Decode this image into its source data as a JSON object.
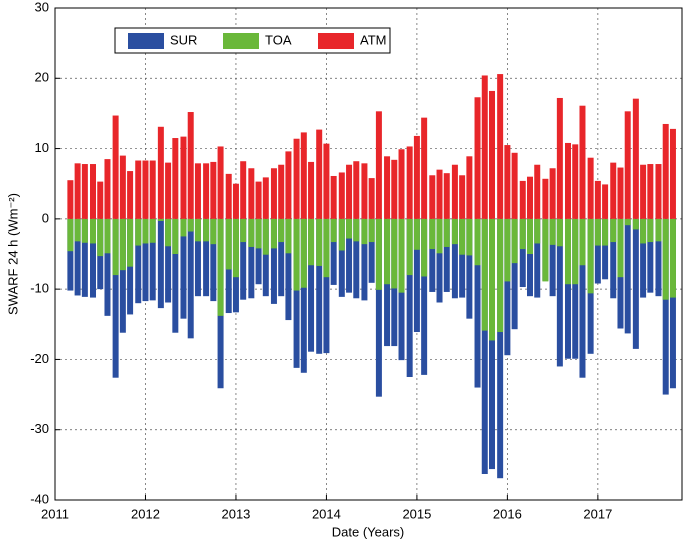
{
  "chart_data": {
    "type": "bar",
    "xlabel": "Date (Years)",
    "ylabel": "SWARF 24 h (Wm⁻²)",
    "x": [
      2011.17,
      2011.25,
      2011.33,
      2011.42,
      2011.5,
      2011.58,
      2011.67,
      2011.75,
      2011.83,
      2011.92,
      2012,
      2012.08,
      2012.17,
      2012.25,
      2012.33,
      2012.42,
      2012.5,
      2012.58,
      2012.67,
      2012.75,
      2012.83,
      2012.92,
      2013,
      2013.08,
      2013.17,
      2013.25,
      2013.33,
      2013.42,
      2013.5,
      2013.58,
      2013.67,
      2013.75,
      2013.83,
      2013.92,
      2014,
      2014.08,
      2014.17,
      2014.25,
      2014.33,
      2014.42,
      2014.5,
      2014.58,
      2014.67,
      2014.75,
      2014.83,
      2014.92,
      2015,
      2015.08,
      2015.17,
      2015.25,
      2015.33,
      2015.42,
      2015.5,
      2015.58,
      2015.67,
      2015.75,
      2015.83,
      2015.92,
      2016,
      2016.08,
      2016.17,
      2016.25,
      2016.33,
      2016.42,
      2016.5,
      2016.58,
      2016.67,
      2016.75,
      2016.83,
      2016.92,
      2017,
      2017.08,
      2017.17,
      2017.25,
      2017.33,
      2017.42,
      2017.5,
      2017.58,
      2017.67,
      2017.75,
      2017.83
    ],
    "series": [
      {
        "name": "SUR",
        "color": "#2a4ea0",
        "values": [
          -10.2,
          -10.9,
          -11.1,
          -11.2,
          -10.0,
          -13.8,
          -22.6,
          -16.2,
          -13.6,
          -12.0,
          -11.7,
          -11.6,
          -12.7,
          -11.9,
          -16.2,
          -14.2,
          -17.0,
          -11.0,
          -11.0,
          -11.7,
          -24.1,
          -13.4,
          -13.3,
          -11.5,
          -11.3,
          -9.3,
          -11.0,
          -12.1,
          -11.0,
          -14.4,
          -21.2,
          -21.9,
          -18.9,
          -19.2,
          -19.1,
          -9.4,
          -11.1,
          -10.5,
          -11.3,
          -11.6,
          -9.1,
          -25.3,
          -18.1,
          -18.1,
          -20.1,
          -22.5,
          -16.1,
          -22.2,
          -10.4,
          -11.9,
          -10.4,
          -11.3,
          -11.2,
          -14.2,
          -24.0,
          -36.3,
          -35.6,
          -36.9,
          -19.4,
          -15.7,
          -9.7,
          -11.0,
          -11.2,
          -8.8,
          -11.0,
          -21.0,
          -19.9,
          -19.9,
          -22.6,
          -19.2,
          -9.2,
          -8.6,
          -11.3,
          -15.6,
          -16.3,
          -18.5,
          -11.2,
          -10.5,
          -11.0,
          -25.0,
          -24.1
        ]
      },
      {
        "name": "TOA",
        "color": "#6ab83a",
        "values": [
          -4.6,
          -3.2,
          -3.4,
          -3.5,
          -5.3,
          -4.9,
          -8.0,
          -7.3,
          -6.8,
          -3.8,
          -3.5,
          -3.4,
          -0.3,
          -3.9,
          -5.0,
          -2.5,
          -1.8,
          -3.2,
          -3.2,
          -3.6,
          -13.8,
          -7.2,
          -8.3,
          -3.3,
          -4.0,
          -4.2,
          -5.1,
          -4.2,
          -3.3,
          -4.9,
          -10.2,
          -9.8,
          -6.6,
          -6.7,
          -8.3,
          -3.3,
          -4.5,
          -2.8,
          -3.2,
          -3.6,
          -3.3,
          -10.1,
          -9.3,
          -9.9,
          -10.5,
          -8.0,
          -4.4,
          -8.2,
          -4.3,
          -4.9,
          -4.0,
          -3.6,
          -5.1,
          -5.2,
          -6.6,
          -15.9,
          -17.3,
          -16.1,
          -8.9,
          -6.3,
          -4.3,
          -5.0,
          -3.5,
          -8.9,
          -3.7,
          -3.9,
          -9.3,
          -9.3,
          -6.6,
          -10.6,
          -3.8,
          -3.8,
          -3.3,
          -8.3,
          -0.9,
          -1.5,
          -3.5,
          -3.3,
          -3.2,
          -11.5,
          -11.2
        ]
      },
      {
        "name": "ATM",
        "color": "#e8262a",
        "values": [
          5.5,
          7.9,
          7.8,
          7.8,
          5.3,
          8.5,
          14.7,
          9.0,
          6.8,
          8.3,
          8.3,
          8.3,
          13.1,
          8.0,
          11.5,
          11.7,
          15.2,
          7.9,
          7.9,
          8.1,
          10.3,
          6.4,
          5.0,
          8.2,
          7.2,
          5.3,
          5.9,
          7.2,
          7.7,
          9.6,
          11.4,
          12.3,
          8.1,
          12.7,
          10.7,
          6.1,
          6.6,
          7.7,
          8.2,
          7.9,
          5.8,
          15.3,
          8.9,
          8.4,
          9.9,
          10.3,
          11.8,
          14.4,
          6.2,
          7.0,
          6.5,
          7.7,
          6.2,
          8.9,
          17.3,
          20.4,
          18.2,
          20.6,
          10.5,
          9.4,
          5.4,
          6.0,
          7.7,
          5.7,
          7.2,
          17.2,
          10.8,
          10.6,
          16.1,
          8.7,
          5.4,
          4.9,
          8.0,
          7.3,
          15.3,
          17.1,
          7.7,
          7.8,
          7.8,
          13.5,
          12.8
        ]
      }
    ],
    "xlim": [
      2011,
      2017.93
    ],
    "xticks": [
      2011,
      2012,
      2013,
      2014,
      2015,
      2016,
      2017
    ],
    "ylim": [
      -40,
      30
    ],
    "yticks": [
      -40,
      -30,
      -20,
      -10,
      0,
      10,
      20,
      30
    ],
    "grid": true,
    "legend": "upper left"
  }
}
